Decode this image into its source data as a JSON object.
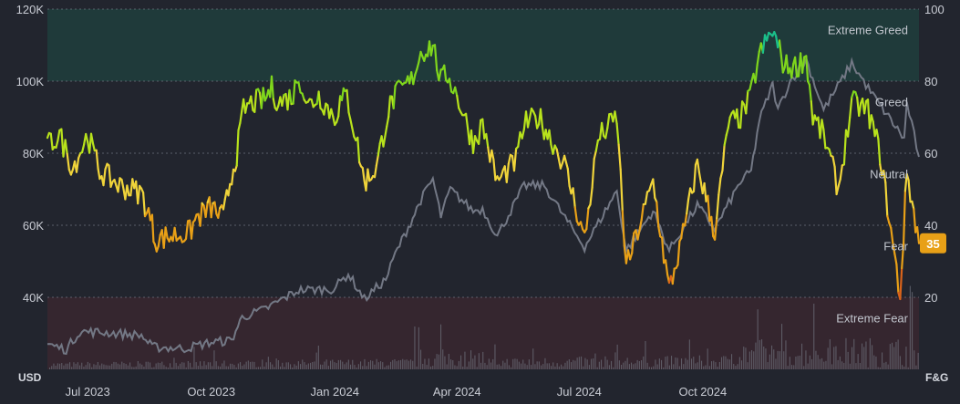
{
  "chart_data": {
    "type": "line",
    "left_axis": {
      "unit": "USD",
      "ticks": [
        {
          "value": 40000,
          "label": "40K"
        },
        {
          "value": 60000,
          "label": "60K"
        },
        {
          "value": 80000,
          "label": "80K"
        },
        {
          "value": 100000,
          "label": "100K"
        },
        {
          "value": 120000,
          "label": "120K"
        }
      ],
      "range": [
        20000,
        120000
      ]
    },
    "right_axis": {
      "unit": "F&G",
      "ticks": [
        {
          "value": 20,
          "label": "20"
        },
        {
          "value": 40,
          "label": "40"
        },
        {
          "value": 60,
          "label": "60"
        },
        {
          "value": 80,
          "label": "80"
        },
        {
          "value": 100,
          "label": "100"
        }
      ],
      "range": [
        0,
        100
      ]
    },
    "x_axis": {
      "range": [
        "2023-06-01",
        "2025-03-11"
      ],
      "ticks": [
        {
          "date": "2023-07-01",
          "label": "Jul 2023"
        },
        {
          "date": "2023-10-01",
          "label": "Oct 2023"
        },
        {
          "date": "2024-01-01",
          "label": "Jan 2024"
        },
        {
          "date": "2024-04-01",
          "label": "Apr 2024"
        },
        {
          "date": "2024-07-01",
          "label": "Jul 2024"
        },
        {
          "date": "2024-10-01",
          "label": "Oct 2024"
        }
      ]
    },
    "zones": [
      {
        "label": "Extreme Greed",
        "from": 80,
        "to": 100,
        "color": "#1f3a3a"
      },
      {
        "label": "Greed",
        "from": 60,
        "to": 80
      },
      {
        "label": "Neutral",
        "from": 40,
        "to": 60
      },
      {
        "label": "Fear",
        "from": 20,
        "to": 40
      },
      {
        "label": "Extreme Fear",
        "from": 0,
        "to": 20,
        "color": "#35262f"
      }
    ],
    "series": [
      {
        "axis": "left",
        "color": "#737885",
        "points": [
          [
            "2023-06-01",
            27000
          ],
          [
            "2023-06-15",
            25500
          ],
          [
            "2023-06-25",
            30500
          ],
          [
            "2023-07-15",
            30200
          ],
          [
            "2023-08-10",
            29400
          ],
          [
            "2023-08-18",
            26200
          ],
          [
            "2023-09-11",
            25800
          ],
          [
            "2023-10-01",
            27500
          ],
          [
            "2023-10-16",
            28000
          ],
          [
            "2023-10-24",
            34500
          ],
          [
            "2023-11-09",
            36500
          ],
          [
            "2023-12-05",
            42000
          ],
          [
            "2023-12-31",
            42300
          ],
          [
            "2024-01-11",
            46500
          ],
          [
            "2024-01-23",
            39500
          ],
          [
            "2024-02-08",
            45000
          ],
          [
            "2024-02-15",
            52000
          ],
          [
            "2024-02-28",
            62000
          ],
          [
            "2024-03-05",
            67000
          ],
          [
            "2024-03-14",
            72800
          ],
          [
            "2024-03-20",
            62500
          ],
          [
            "2024-03-27",
            70000
          ],
          [
            "2024-04-13",
            64000
          ],
          [
            "2024-04-20",
            64500
          ],
          [
            "2024-05-01",
            57000
          ],
          [
            "2024-05-21",
            71000
          ],
          [
            "2024-06-05",
            71000
          ],
          [
            "2024-06-24",
            60000
          ],
          [
            "2024-07-05",
            54000
          ],
          [
            "2024-07-29",
            69500
          ],
          [
            "2024-08-05",
            53000
          ],
          [
            "2024-08-25",
            64000
          ],
          [
            "2024-09-06",
            53000
          ],
          [
            "2024-09-27",
            65500
          ],
          [
            "2024-10-10",
            59000
          ],
          [
            "2024-10-29",
            72000
          ],
          [
            "2024-11-06",
            75000
          ],
          [
            "2024-11-12",
            89000
          ],
          [
            "2024-11-22",
            99000
          ],
          [
            "2024-11-26",
            92000
          ],
          [
            "2024-12-05",
            100000
          ],
          [
            "2024-12-17",
            106000
          ],
          [
            "2024-12-30",
            92000
          ],
          [
            "2025-01-20",
            105000
          ],
          [
            "2025-02-03",
            97000
          ],
          [
            "2025-02-28",
            84000
          ],
          [
            "2025-03-02",
            94000
          ],
          [
            "2025-03-11",
            79000
          ]
        ]
      },
      {
        "axis": "right",
        "color_scale": [
          [
            0,
            "#d9631a"
          ],
          [
            25,
            "#e8a017"
          ],
          [
            45,
            "#f0d43a"
          ],
          [
            60,
            "#b8e21c"
          ],
          [
            75,
            "#7fd61c"
          ],
          [
            90,
            "#1bbf8a"
          ]
        ],
        "points": [
          [
            "2023-06-01",
            62
          ],
          [
            "2023-06-10",
            65
          ],
          [
            "2023-06-20",
            56
          ],
          [
            "2023-07-01",
            65
          ],
          [
            "2023-07-10",
            55
          ],
          [
            "2023-07-25",
            51
          ],
          [
            "2023-08-10",
            49
          ],
          [
            "2023-08-18",
            40
          ],
          [
            "2023-08-20",
            36
          ],
          [
            "2023-09-01",
            37
          ],
          [
            "2023-09-15",
            38
          ],
          [
            "2023-09-20",
            42
          ],
          [
            "2023-10-01",
            45
          ],
          [
            "2023-10-10",
            42
          ],
          [
            "2023-10-15",
            52
          ],
          [
            "2023-10-20",
            60
          ],
          [
            "2023-10-25",
            72
          ],
          [
            "2023-11-01",
            74
          ],
          [
            "2023-11-10",
            75
          ],
          [
            "2023-11-15",
            78
          ],
          [
            "2023-11-20",
            74
          ],
          [
            "2023-12-01",
            76
          ],
          [
            "2023-12-05",
            82
          ],
          [
            "2023-12-12",
            73
          ],
          [
            "2023-12-20",
            76
          ],
          [
            "2024-01-01",
            70
          ],
          [
            "2024-01-05",
            74
          ],
          [
            "2024-01-10",
            76
          ],
          [
            "2024-01-18",
            62
          ],
          [
            "2024-01-23",
            52
          ],
          [
            "2024-02-01",
            56
          ],
          [
            "2024-02-10",
            72
          ],
          [
            "2024-02-15",
            76
          ],
          [
            "2024-02-27",
            80
          ],
          [
            "2024-03-05",
            88
          ],
          [
            "2024-03-14",
            90
          ],
          [
            "2024-03-20",
            80
          ],
          [
            "2024-03-25",
            82
          ],
          [
            "2024-04-01",
            76
          ],
          [
            "2024-04-13",
            63
          ],
          [
            "2024-04-20",
            68
          ],
          [
            "2024-05-01",
            52
          ],
          [
            "2024-05-15",
            58
          ],
          [
            "2024-05-21",
            68
          ],
          [
            "2024-06-01",
            70
          ],
          [
            "2024-06-10",
            64
          ],
          [
            "2024-06-20",
            57
          ],
          [
            "2024-06-25",
            50
          ],
          [
            "2024-07-05",
            36
          ],
          [
            "2024-07-15",
            64
          ],
          [
            "2024-07-29",
            70
          ],
          [
            "2024-08-05",
            28
          ],
          [
            "2024-08-15",
            40
          ],
          [
            "2024-08-25",
            52
          ],
          [
            "2024-09-06",
            22
          ],
          [
            "2024-09-15",
            35
          ],
          [
            "2024-09-27",
            57
          ],
          [
            "2024-10-10",
            38
          ],
          [
            "2024-10-20",
            68
          ],
          [
            "2024-10-29",
            70
          ],
          [
            "2024-11-05",
            75
          ],
          [
            "2024-11-12",
            87
          ],
          [
            "2024-11-22",
            94
          ],
          [
            "2024-12-01",
            84
          ],
          [
            "2024-12-10",
            84
          ],
          [
            "2024-12-17",
            87
          ],
          [
            "2024-12-22",
            70
          ],
          [
            "2024-12-30",
            65
          ],
          [
            "2025-01-10",
            50
          ],
          [
            "2025-01-20",
            74
          ],
          [
            "2025-02-01",
            72
          ],
          [
            "2025-02-10",
            60
          ],
          [
            "2025-02-25",
            20
          ],
          [
            "2025-03-02",
            55
          ],
          [
            "2025-03-11",
            35
          ]
        ]
      }
    ],
    "volume_bars": true,
    "current_value": {
      "value": 35,
      "label": "35",
      "color": "#e8a017"
    }
  }
}
